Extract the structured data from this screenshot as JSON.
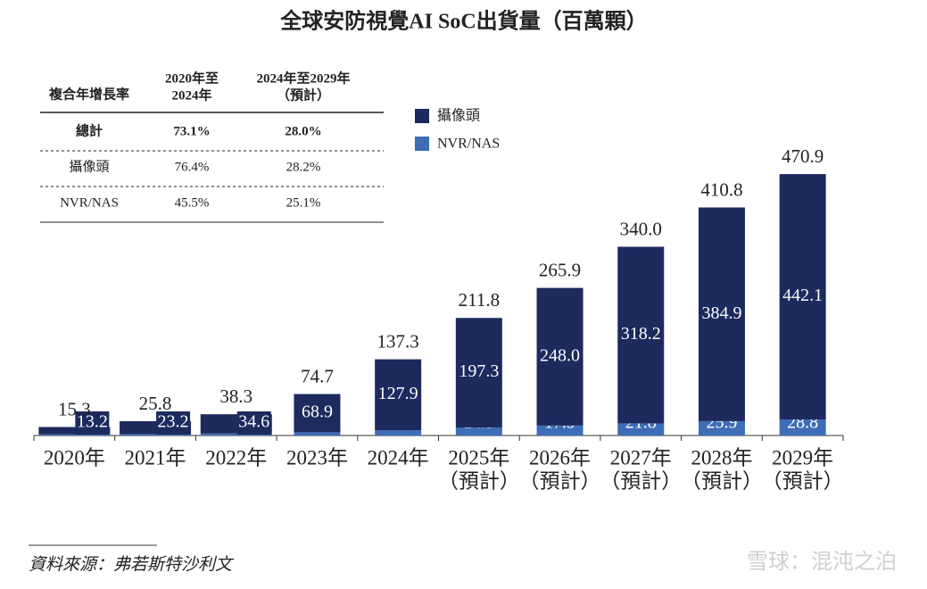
{
  "chart_data": {
    "type": "stacked-bar",
    "title": "全球安防視覺AI SoC出貨量（百萬顆）",
    "categories": [
      [
        "2020年"
      ],
      [
        "2021年"
      ],
      [
        "2022年"
      ],
      [
        "2023年"
      ],
      [
        "2024年"
      ],
      [
        "2025年",
        "（預計）"
      ],
      [
        "2026年",
        "（預計）"
      ],
      [
        "2027年",
        "（預計）"
      ],
      [
        "2028年",
        "（預計）"
      ],
      [
        "2029年",
        "（預計）"
      ]
    ],
    "series": [
      {
        "name": "NVR/NAS",
        "color": "#3e6db7",
        "values": [
          2.1,
          2.6,
          3.7,
          5.8,
          9.4,
          14.5,
          17.9,
          21.8,
          25.9,
          28.8
        ]
      },
      {
        "name": "攝像頭",
        "color": "#1c2a5e",
        "values": [
          13.2,
          23.2,
          34.6,
          68.9,
          127.9,
          197.3,
          248.0,
          318.2,
          384.9,
          442.1
        ],
        "value_labels": [
          "13.2",
          "23.2",
          "34.6",
          "68.9",
          "127.9",
          "197.3",
          "248.0",
          "318.2",
          "384.9",
          "442.1"
        ]
      }
    ],
    "totals": [
      15.3,
      25.8,
      38.3,
      74.7,
      137.3,
      211.8,
      265.9,
      340.0,
      410.8,
      470.9
    ],
    "total_labels": [
      "15.3",
      "25.8",
      "38.3",
      "74.7",
      "137.3",
      "211.8",
      "265.9",
      "340.0",
      "410.8",
      "470.9"
    ],
    "ylim": [
      0,
      500
    ]
  },
  "table": {
    "header": [
      [
        "複合年增長率"
      ],
      [
        "2020年至",
        "2024年"
      ],
      [
        "2024年至2029年",
        "（預計）"
      ]
    ],
    "rows": [
      [
        "總計",
        "73.1%",
        "28.0%"
      ],
      [
        "攝像頭",
        "76.4%",
        "28.2%"
      ],
      [
        "NVR/NAS",
        "45.5%",
        "25.1%"
      ]
    ]
  },
  "source": "資料來源：弗若斯特沙利文",
  "watermark": "雪球：混沌之泊"
}
